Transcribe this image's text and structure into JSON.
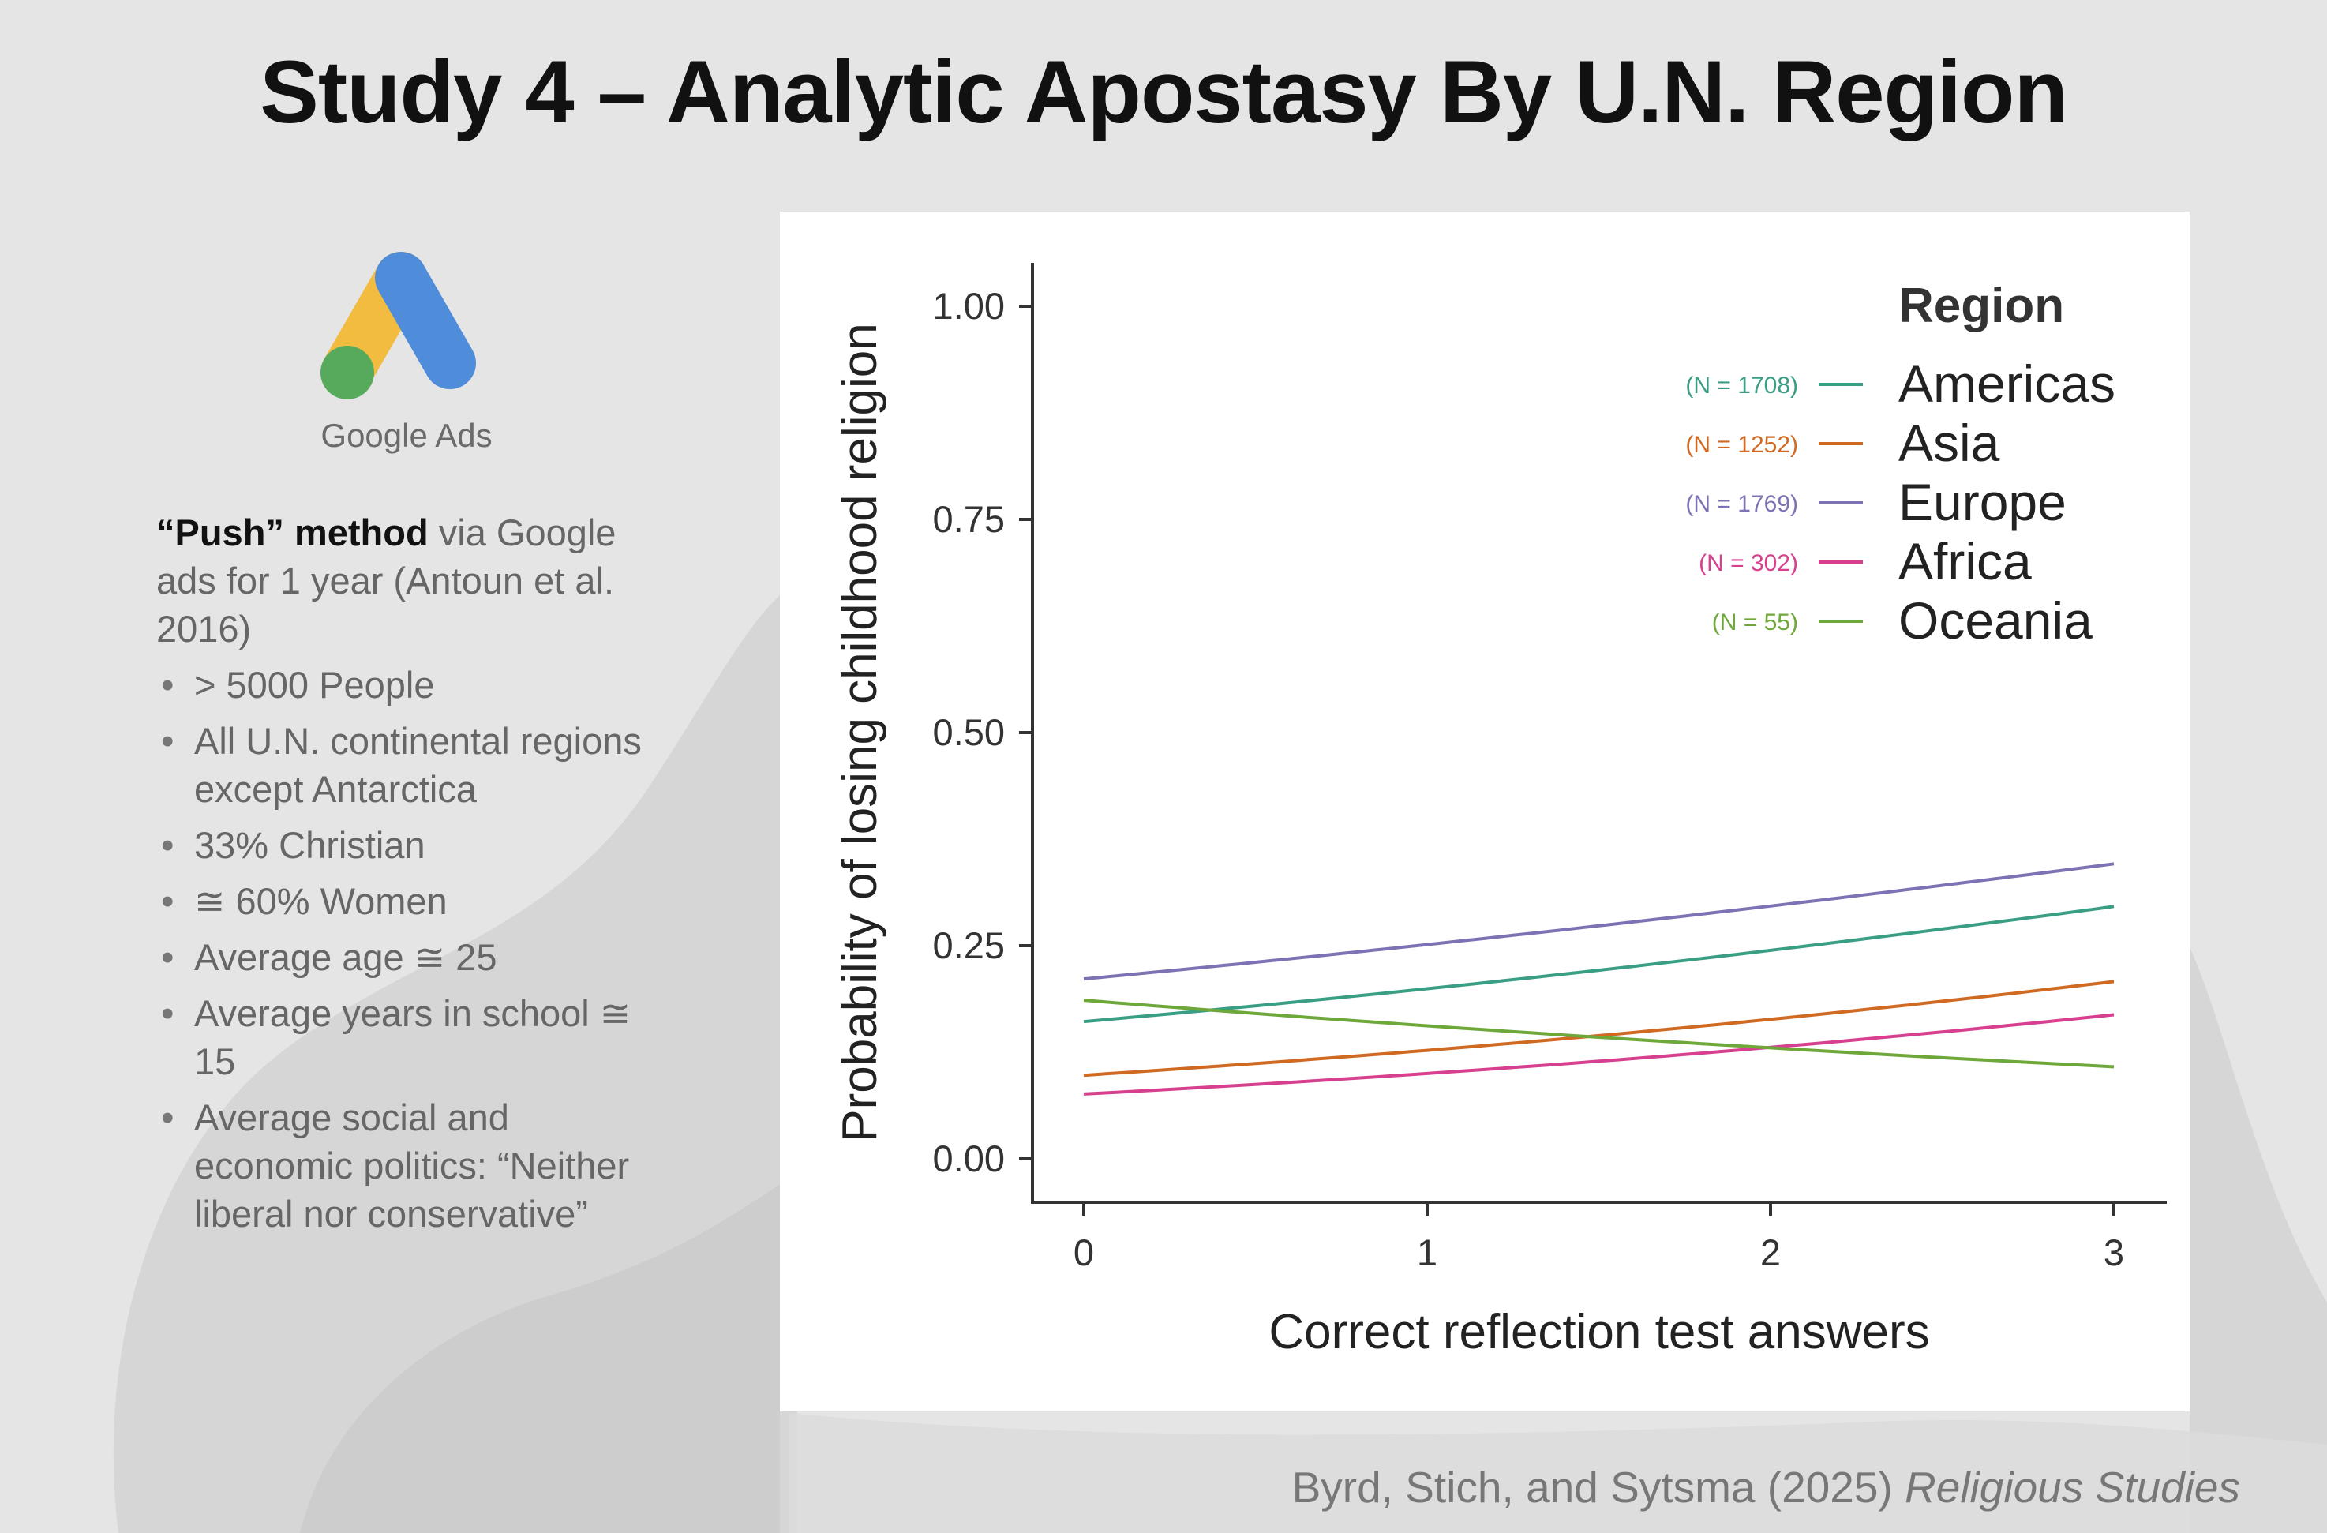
{
  "title": "Study 4 – Analytic Apostasy By U.N. Region",
  "logo": {
    "text": "Google Ads",
    "colors": {
      "yellow": "#f1bc3f",
      "blue": "#4f8ddb",
      "green": "#57a95b"
    }
  },
  "method": {
    "bold": "“Push” method",
    "rest": " via Google ads for 1 year (Antoun et al. 2016)",
    "bullets": [
      "> 5000 People",
      "All U.N. continental regions except Antarctica",
      "33% Christian",
      "≅ 60% Women",
      "Average age ≅ 25",
      "Average years in school ≅ 15",
      "Average social and economic politics: “Neither liberal nor conservative”"
    ]
  },
  "citation": {
    "authors": "Byrd, Stich, and Sytsma (2025) ",
    "journal": "Religious Studies"
  },
  "chart_data": {
    "type": "line",
    "xlabel": "Correct reflection test answers",
    "ylabel": "Probability of losing childhood religion",
    "xlim": [
      0,
      3
    ],
    "ylim": [
      0,
      1
    ],
    "x_ticks": [
      0,
      1,
      2,
      3
    ],
    "x_tick_labels": [
      "0",
      "1",
      "2",
      "3"
    ],
    "y_ticks": [
      0,
      0.25,
      0.5,
      0.75,
      1.0
    ],
    "y_tick_labels": [
      "0.00",
      "0.25",
      "0.50",
      "0.75",
      "1.00"
    ],
    "legend_title": "Region",
    "legend_position": "top-right",
    "series": [
      {
        "name": "Americas",
        "n_label": "(N = 1708)",
        "color": "#3a9e84",
        "start": 0.161,
        "end": 0.296
      },
      {
        "name": "Asia",
        "n_label": "(N = 1252)",
        "color": "#d06a22",
        "start": 0.098,
        "end": 0.208
      },
      {
        "name": "Europe",
        "n_label": "(N = 1769)",
        "color": "#7f72b4",
        "start": 0.211,
        "end": 0.346
      },
      {
        "name": "Africa",
        "n_label": "(N = 302)",
        "color": "#d6408f",
        "start": 0.076,
        "end": 0.169
      },
      {
        "name": "Oceania",
        "n_label": "(N = 55)",
        "color": "#6fa83a",
        "start": 0.186,
        "end": 0.108
      }
    ]
  }
}
